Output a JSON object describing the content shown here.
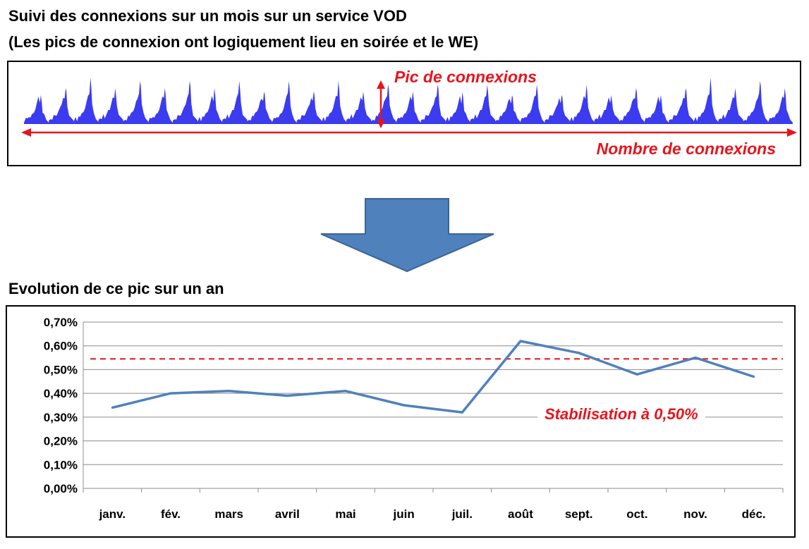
{
  "header": {
    "title_line1": "Suivi des connexions sur un mois sur un service VOD",
    "title_line2": "(Les pics de connexion ont logiquement lieu en soirée et le WE)"
  },
  "monthly_panel": {
    "peak_label": "Pic de connexions",
    "connections_label": "Nombre de connexions",
    "wave_color": "#3b3bf0",
    "annotation_color": "#e8141c"
  },
  "arrow": {
    "color": "#4f81bd",
    "direction": "down"
  },
  "yearly_section": {
    "title": "Evolution de ce pic sur un an",
    "annotation": "Stabilisation à 0,50%"
  },
  "chart_data": {
    "type": "line",
    "categories": [
      "janv.",
      "fév.",
      "mars",
      "avril",
      "mai",
      "juin",
      "juil.",
      "août",
      "sept.",
      "oct.",
      "nov.",
      "déc."
    ],
    "series": [
      {
        "values": [
          0.34,
          0.4,
          0.41,
          0.39,
          0.41,
          0.35,
          0.32,
          0.62,
          0.57,
          0.48,
          0.55,
          0.47
        ],
        "color": "#4f81bd"
      }
    ],
    "ylim": [
      0,
      0.7
    ],
    "yticks": [
      0,
      0.1,
      0.2,
      0.3,
      0.4,
      0.5,
      0.6,
      0.7
    ],
    "ytick_labels": [
      "0,00%",
      "0,10%",
      "0,20%",
      "0,30%",
      "0,40%",
      "0,50%",
      "0,60%",
      "0,70%"
    ],
    "reference_line": {
      "value": 0.545,
      "color": "#e8141c",
      "style": "dashed"
    },
    "grid": true,
    "title": "",
    "xlabel": "",
    "ylabel": ""
  }
}
